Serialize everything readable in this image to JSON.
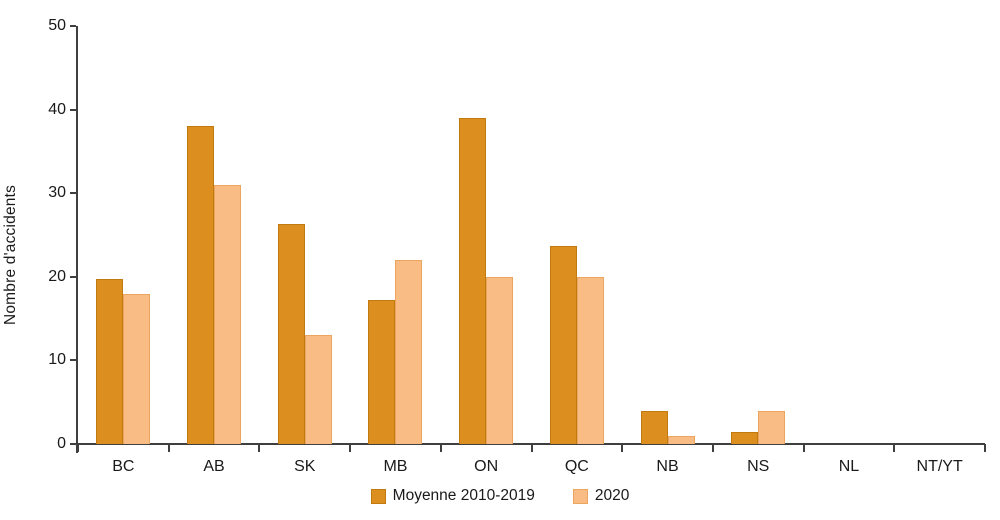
{
  "chart_data": {
    "type": "bar",
    "title": "",
    "ylabel": "Nombre d'accidents",
    "xlabel": "",
    "categories": [
      "BC",
      "AB",
      "SK",
      "MB",
      "ON",
      "QC",
      "NB",
      "NS",
      "NL",
      "NT/YT"
    ],
    "series": [
      {
        "name": "Moyenne 2010-2019",
        "color": "#DC8E1E",
        "border_color": "#C07A10",
        "values": [
          19.7,
          38,
          26.3,
          17.2,
          39,
          23.7,
          3.9,
          1.4,
          0,
          0
        ]
      },
      {
        "name": "2020",
        "color": "#F9BC85",
        "border_color": "#ECA55F",
        "values": [
          18,
          31,
          13,
          22,
          20,
          20,
          1,
          4,
          0,
          0
        ]
      }
    ],
    "ylim": [
      0,
      50
    ],
    "yticks": [
      0,
      10,
      20,
      30,
      40,
      50
    ],
    "grid": false,
    "legend_position": "bottom"
  },
  "colors": {
    "axis": "#3F3F3F",
    "text": "#1A1A1A",
    "background": "#FFFFFF"
  }
}
